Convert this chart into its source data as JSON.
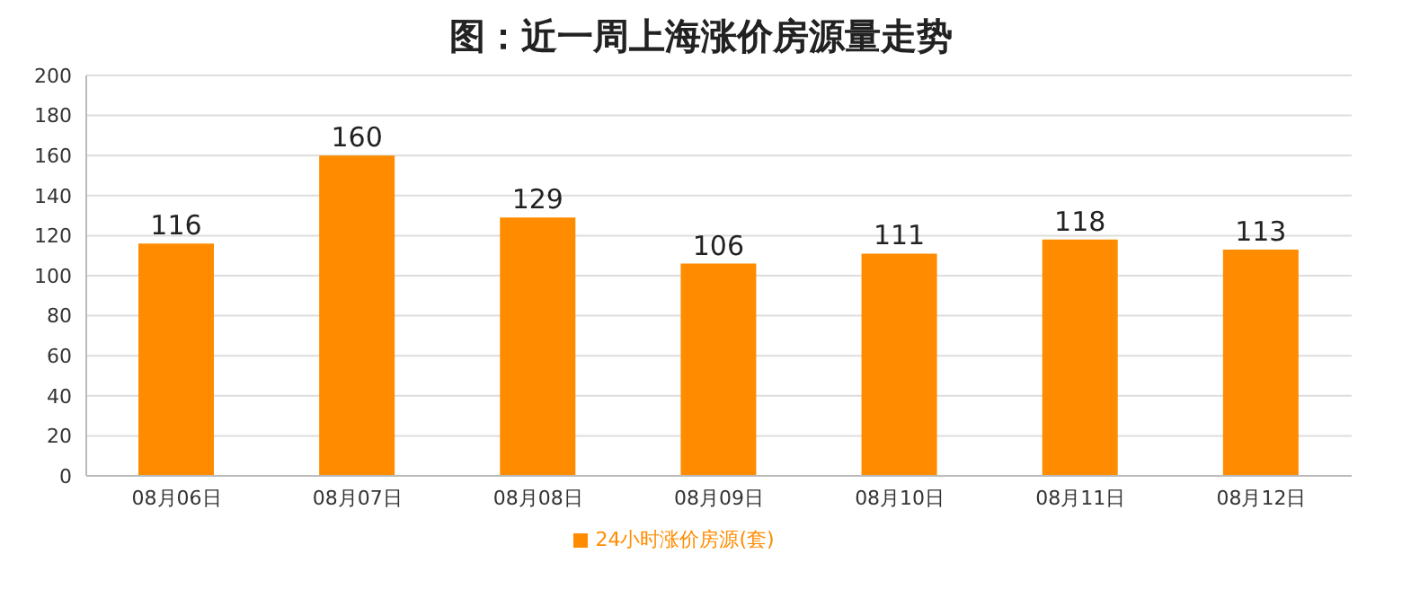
{
  "chart_data": {
    "type": "bar",
    "title": "图：近一周上海涨价房源量走势",
    "categories": [
      "08月06日",
      "08月07日",
      "08月08日",
      "08月09日",
      "08月10日",
      "08月11日",
      "08月12日"
    ],
    "series": [
      {
        "name": "24小时涨价房源(套)",
        "color": "#ff8c00",
        "values": [
          116,
          160,
          129,
          106,
          111,
          118,
          113
        ]
      }
    ],
    "ylim": [
      0,
      200
    ],
    "yticks": [
      0,
      20,
      40,
      60,
      80,
      100,
      120,
      140,
      160,
      180,
      200
    ],
    "grid": "y",
    "legend": "bottom",
    "data_labels": true
  }
}
